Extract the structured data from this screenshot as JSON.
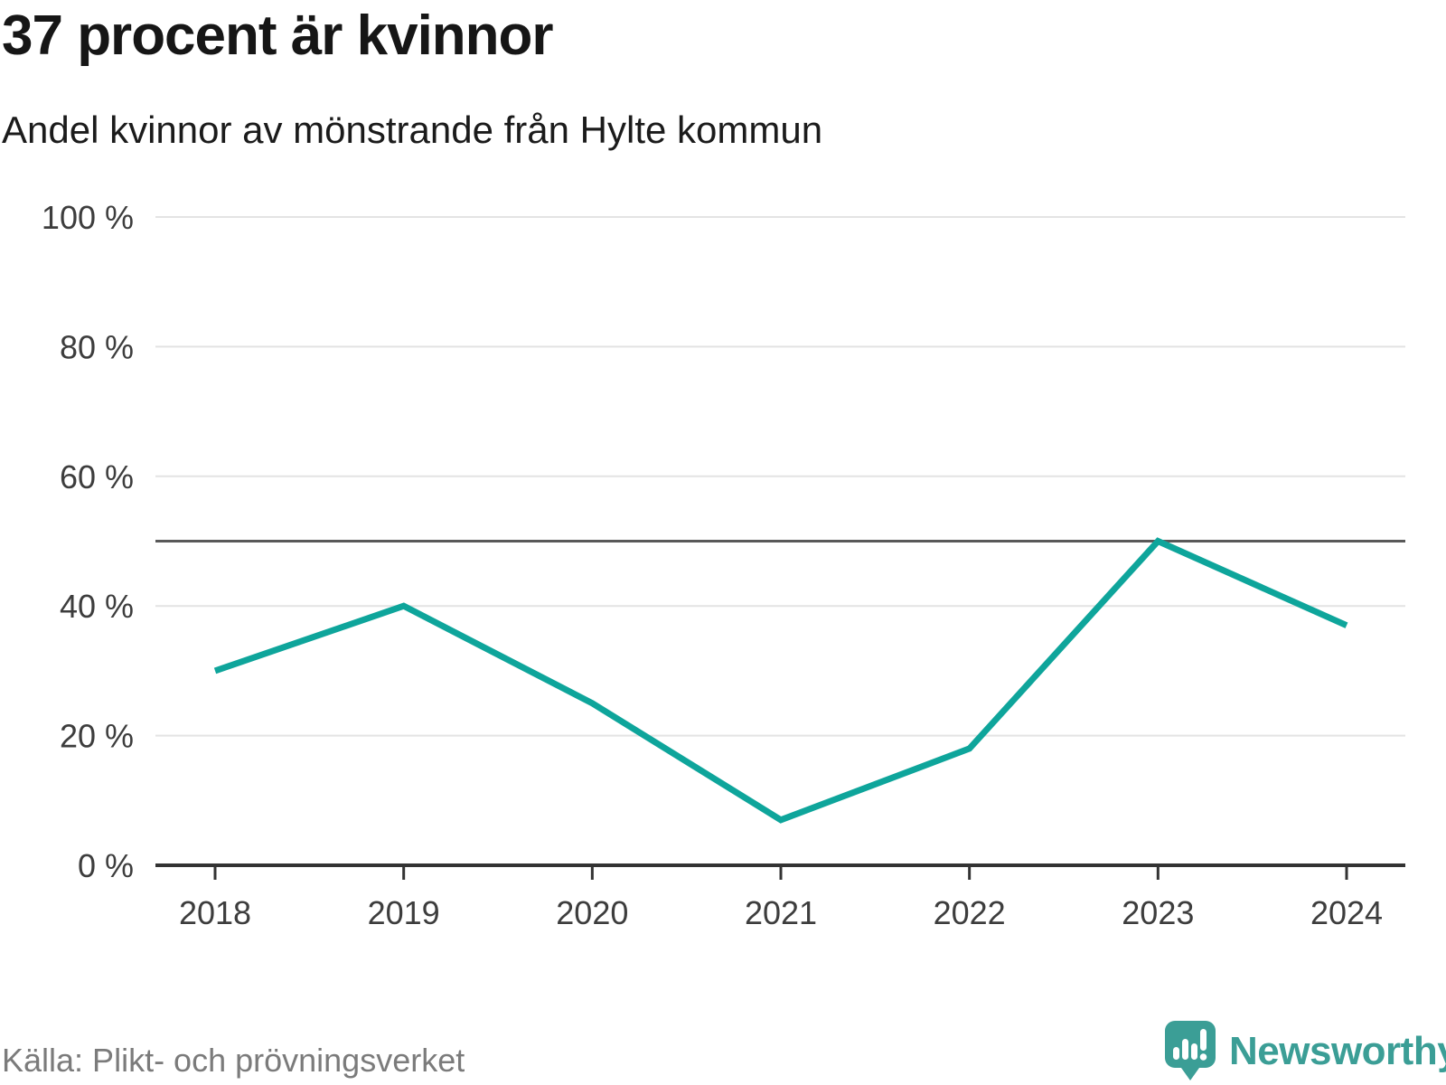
{
  "header": {
    "title": "37 procent är kvinnor",
    "subtitle": "Andel kvinnor av mönstrande från Hylte kommun"
  },
  "chart_data": {
    "type": "line",
    "title": "37 procent är kvinnor",
    "subtitle": "Andel kvinnor av mönstrande från Hylte kommun",
    "categories": [
      "2018",
      "2019",
      "2020",
      "2021",
      "2022",
      "2023",
      "2024"
    ],
    "series": [
      {
        "name": "Andel kvinnor av mönstrande",
        "values": [
          30,
          40,
          25,
          7,
          18,
          50,
          37
        ]
      }
    ],
    "unit": "%",
    "ylim": [
      0,
      100
    ],
    "yticks": [
      0,
      20,
      40,
      60,
      80,
      100
    ],
    "ytick_labels": [
      "0 %",
      "20 %",
      "40 %",
      "60 %",
      "80 %",
      "100 %"
    ],
    "reference_line": 50,
    "grid": true,
    "legend": "none"
  },
  "colors": {
    "line": "#0ea59b",
    "reference_line": "#595959",
    "grid": "#e3e3e3",
    "axis": "#333333",
    "tick_text": "#3d3d3d",
    "logo": "#3b9e96"
  },
  "footer": {
    "source": "Källa: Plikt- och prövningsverket",
    "logo_text": "Newsworthy"
  }
}
